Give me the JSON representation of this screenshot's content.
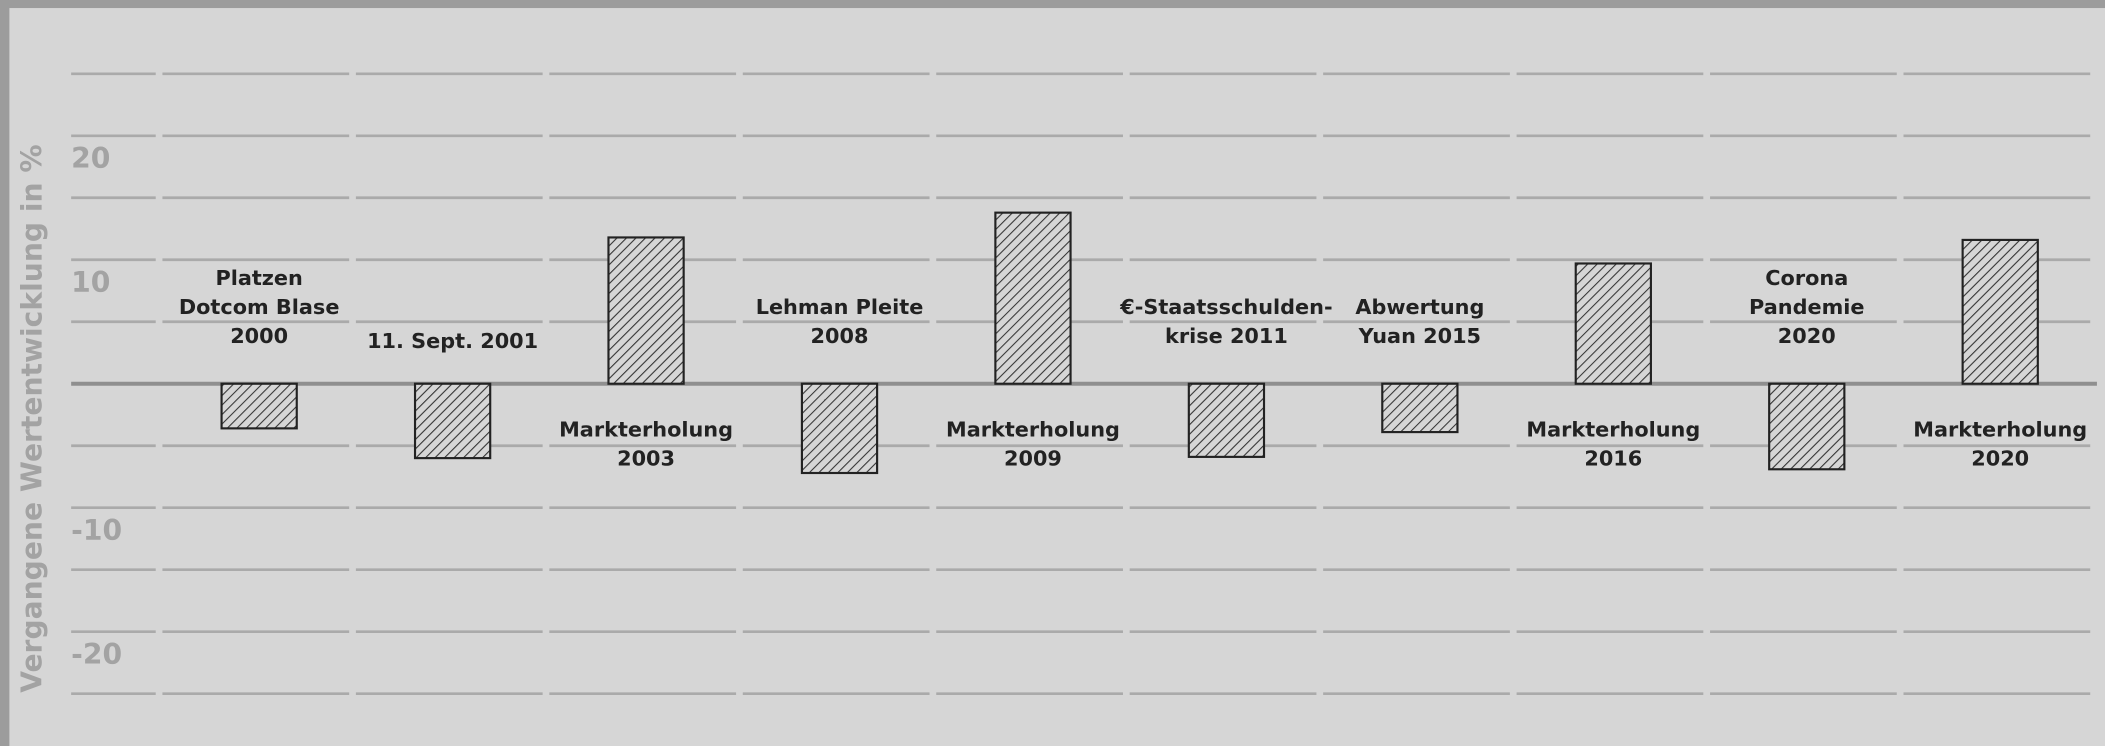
{
  "chart_data": {
    "type": "bar",
    "y_label": "Vergangene Wertentwicklung in %",
    "categories": [
      [
        "Platzen",
        "Dotcom Blase",
        "2000"
      ],
      [
        "11. Sept. 2001"
      ],
      [
        "Markterholung",
        "2003"
      ],
      [
        "Lehman Pleite",
        "2008"
      ],
      [
        "Markterholung",
        "2009"
      ],
      [
        "€-Staatsschulden-",
        "krise 2011"
      ],
      [
        "Abwertung",
        "Yuan 2015"
      ],
      [
        "Markterholung",
        "2016"
      ],
      [
        "Corona",
        "Pandemie",
        "2020"
      ],
      [
        "Markterholung",
        "2020"
      ]
    ],
    "values": [
      -3.6,
      -6,
      11.8,
      -7.2,
      13.8,
      -5.9,
      -3.9,
      9.7,
      -6.9,
      11.6
    ],
    "color": "#222222",
    "ylim": [
      -25,
      25
    ],
    "yticks": [
      -20,
      -10,
      10,
      20
    ],
    "minor_yticks": [
      -25,
      -15,
      -5,
      5,
      15,
      25
    ],
    "grid": true
  }
}
